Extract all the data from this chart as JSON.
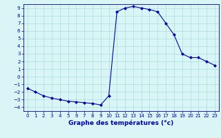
{
  "x": [
    0,
    1,
    2,
    3,
    4,
    5,
    6,
    7,
    8,
    9,
    10,
    11,
    12,
    13,
    14,
    15,
    16,
    17,
    18,
    19,
    20,
    21,
    22,
    23
  ],
  "y": [
    -1.5,
    -2.0,
    -2.5,
    -2.8,
    -3.0,
    -3.2,
    -3.3,
    -3.4,
    -3.5,
    -3.7,
    -2.5,
    8.5,
    9.0,
    9.2,
    9.0,
    8.8,
    8.5,
    7.0,
    5.5,
    3.0,
    2.5,
    2.5,
    2.0,
    1.5
  ],
  "xlabel": "Graphe des températures (°c)",
  "xlim": [
    -0.5,
    23.5
  ],
  "ylim": [
    -4.5,
    9.5
  ],
  "yticks": [
    -4,
    -3,
    -2,
    -1,
    0,
    1,
    2,
    3,
    4,
    5,
    6,
    7,
    8,
    9
  ],
  "xticks": [
    0,
    1,
    2,
    3,
    4,
    5,
    6,
    7,
    8,
    9,
    10,
    11,
    12,
    13,
    14,
    15,
    16,
    17,
    18,
    19,
    20,
    21,
    22,
    23
  ],
  "line_color": "#0000aa",
  "marker": "D",
  "marker_size": 2.0,
  "bg_color": "#daf5f5",
  "grid_color": "#aadddd",
  "xlabel_fontsize": 6.5,
  "tick_fontsize": 5.0
}
